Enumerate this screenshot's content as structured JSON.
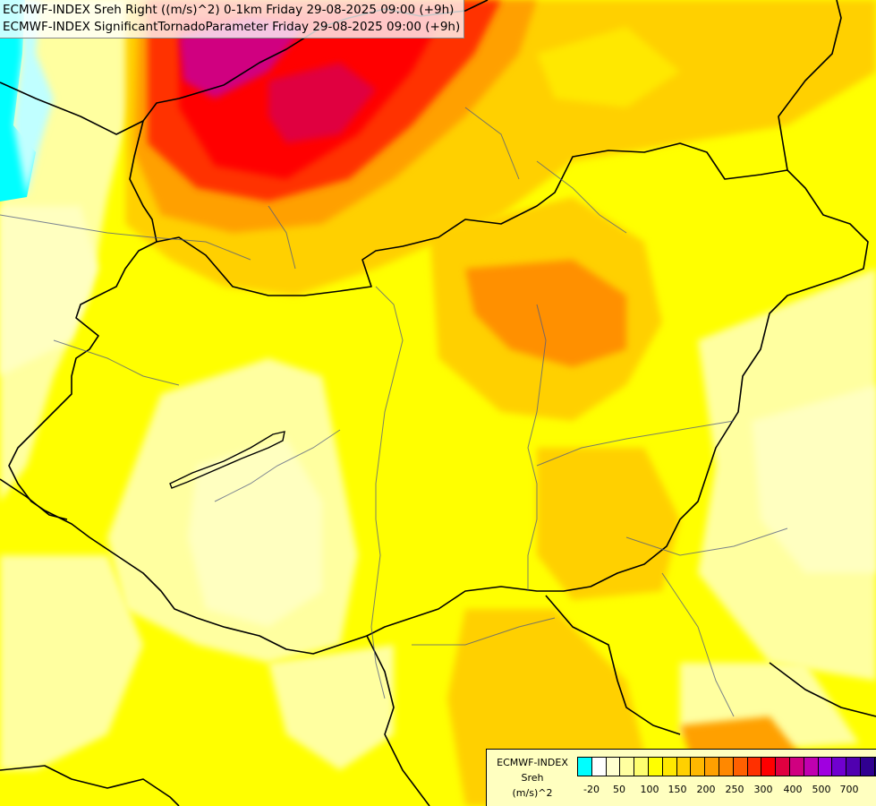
{
  "title": {
    "line1": "ECMWF-INDEX Sreh Right ((m/s)^2) 0-1km Friday 29-08-2025 09:00 (+9h)",
    "line2": "ECMWF-INDEX SignificantTornadoParameter Friday 29-08-2025 09:00 (+9h)"
  },
  "legend": {
    "line1": "ECMWF-INDEX",
    "line2": "Sreh",
    "line3": "(m/s)^2",
    "colors": [
      "#00ffff",
      "#ffffff",
      "#ffffd0",
      "#ffffa0",
      "#ffff70",
      "#ffff00",
      "#ffe800",
      "#ffd000",
      "#ffb800",
      "#ffa000",
      "#ff8800",
      "#ff6000",
      "#ff3000",
      "#ff0000",
      "#e00040",
      "#d00080",
      "#c000b0",
      "#a000e0",
      "#7000d0",
      "#5000b0",
      "#300090",
      "#100070"
    ],
    "ticks": [
      "-20",
      "50",
      "100",
      "150",
      "200",
      "250",
      "300",
      "400",
      "500",
      "700"
    ]
  }
}
